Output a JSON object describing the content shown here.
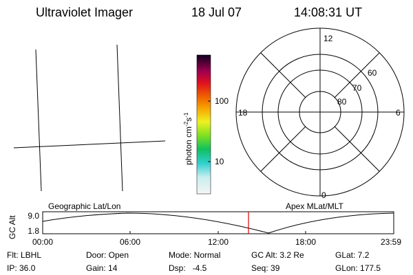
{
  "header": {
    "title": "Ultraviolet Imager",
    "date": "18 Jul 07",
    "time": "14:08:31 UT"
  },
  "colorbar": {
    "label": "photon cm",
    "exp1": "-2",
    "unit2": "s",
    "exp2": "-1",
    "ticks": [
      "100",
      "10"
    ]
  },
  "polar": {
    "mlt_labels": [
      "12",
      "18",
      "6",
      "0"
    ],
    "lat_labels": [
      "60",
      "70",
      "80"
    ]
  },
  "timeline": {
    "left_label": "Geographic Lat/Lon",
    "right_label": "Apex MLat/MLT",
    "y_label": "GC Alt",
    "yticks": [
      "9.0",
      "1.8"
    ],
    "xticks": [
      "00:00",
      "06:00",
      "12:00",
      "18:00",
      "23:59"
    ]
  },
  "footer": {
    "rows": [
      [
        "Flt: LBHL",
        "Door: Open",
        "Mode: Normal",
        "GC Alt: 3.2 Re",
        "GLat: 7.2"
      ],
      [
        "IP: 36.0",
        "Gain: 14",
        "Dsp:   -4.5",
        "Seq: 39",
        "GLon: 177.5"
      ]
    ]
  }
}
